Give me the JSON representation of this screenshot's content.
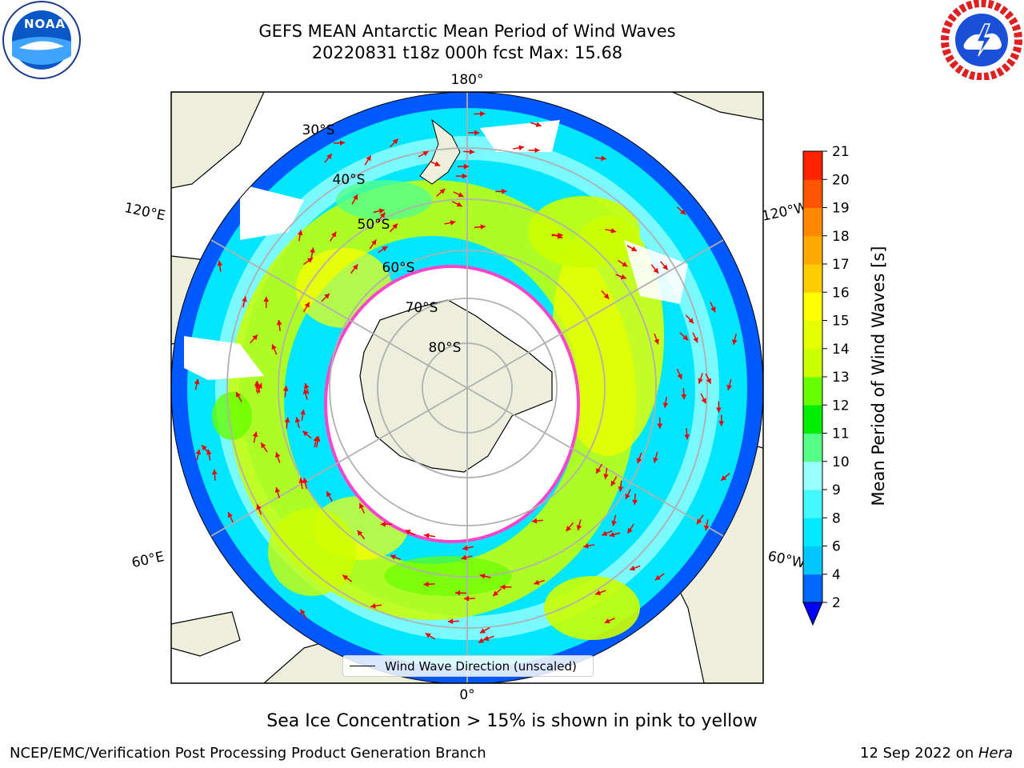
{
  "header": {
    "title_line1": "GEFS MEAN Antarctic Mean Period of Wind Waves",
    "title_line2": "20220831 t18z 000h fcst   Max: 15.68"
  },
  "map": {
    "projection": "south-polar-stereographic",
    "longitude_labels": {
      "top": "180°",
      "upper_left": "120°E",
      "upper_right": "120°W",
      "lower_left": "60°E",
      "lower_right": "60°W",
      "bottom": "0°"
    },
    "latitude_labels": [
      "30°S",
      "40°S",
      "50°S",
      "60°S",
      "70°S",
      "80°S"
    ],
    "land_color": "#eeeedd",
    "ocean_fill_color": "#00e6ff",
    "sea_ice_color": "#ff44cc",
    "arrow_color": "#ee0000",
    "legend": "Wind Wave Direction (unscaled)",
    "note": "Sea Ice Concentration > 15% is shown in pink to yellow"
  },
  "chart_data": {
    "type": "heatmap",
    "title": "GEFS MEAN Antarctic Mean Period of Wind Waves",
    "subtitle": "20220831 t18z 000h fcst   Max: 15.68",
    "colorbar": {
      "label": "Mean Period of Wind Waves [s]",
      "ticks": [
        2,
        4,
        6,
        8,
        9,
        10,
        11,
        12,
        13,
        14,
        15,
        16,
        17,
        18,
        19,
        20,
        21
      ],
      "colors": [
        "#0066ff",
        "#00c8ff",
        "#00eaff",
        "#44f8ff",
        "#99ffff",
        "#55ff88",
        "#00ee00",
        "#66ff00",
        "#ccff00",
        "#e6ff00",
        "#ffff00",
        "#ffcc00",
        "#ffaa00",
        "#ff8800",
        "#ff5500",
        "#ff2200"
      ],
      "extend": "min",
      "extend_color": "#0000ff"
    },
    "max_value": 15.68
  },
  "logos": {
    "left": "NOAA",
    "right": "NATIONAL WEATHER SERVICE"
  },
  "footer": {
    "left": "NCEP/EMC/Verification Post Processing Product Generation Branch",
    "right_date": "12 Sep 2022 on ",
    "right_host": "Hera"
  }
}
